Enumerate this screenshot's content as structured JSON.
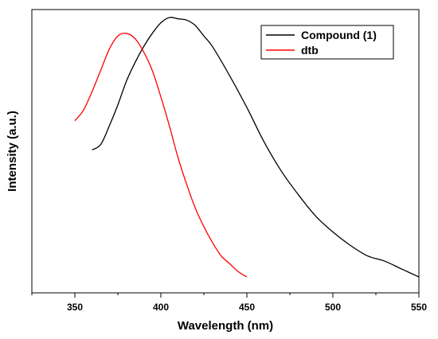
{
  "chart_data": {
    "type": "line",
    "title": "",
    "xlabel": "Wavelength (nm)",
    "ylabel": "Intensity (a.u.)",
    "xlim": [
      325,
      550
    ],
    "ylim": [
      0,
      1.07
    ],
    "xticks": [
      350,
      400,
      450,
      500,
      550
    ],
    "xtick_labels": [
      "350",
      "400",
      "450",
      "500",
      "550"
    ],
    "yticks_shown": false,
    "grid": false,
    "legend_position": "top-right",
    "series": [
      {
        "name": "Compound (1)",
        "color": "#000000",
        "x": [
          360,
          365,
          370,
          375,
          380,
          385,
          390,
          395,
          400,
          405,
          410,
          415,
          420,
          425,
          430,
          440,
          450,
          460,
          470,
          480,
          490,
          500,
          510,
          520,
          530,
          540,
          550
        ],
        "y": [
          0.54,
          0.56,
          0.63,
          0.71,
          0.8,
          0.87,
          0.93,
          0.98,
          1.02,
          1.04,
          1.035,
          1.03,
          1.01,
          0.97,
          0.93,
          0.82,
          0.7,
          0.57,
          0.46,
          0.37,
          0.29,
          0.23,
          0.18,
          0.14,
          0.12,
          0.09,
          0.06
        ]
      },
      {
        "name": "dtb",
        "color": "#ff0000",
        "x": [
          350,
          355,
          360,
          365,
          370,
          375,
          380,
          385,
          390,
          395,
          400,
          405,
          410,
          415,
          420,
          425,
          430,
          435,
          440,
          445,
          450
        ],
        "y": [
          0.65,
          0.69,
          0.76,
          0.84,
          0.92,
          0.97,
          0.98,
          0.96,
          0.91,
          0.84,
          0.74,
          0.63,
          0.51,
          0.41,
          0.32,
          0.25,
          0.19,
          0.14,
          0.11,
          0.08,
          0.06
        ]
      }
    ]
  }
}
